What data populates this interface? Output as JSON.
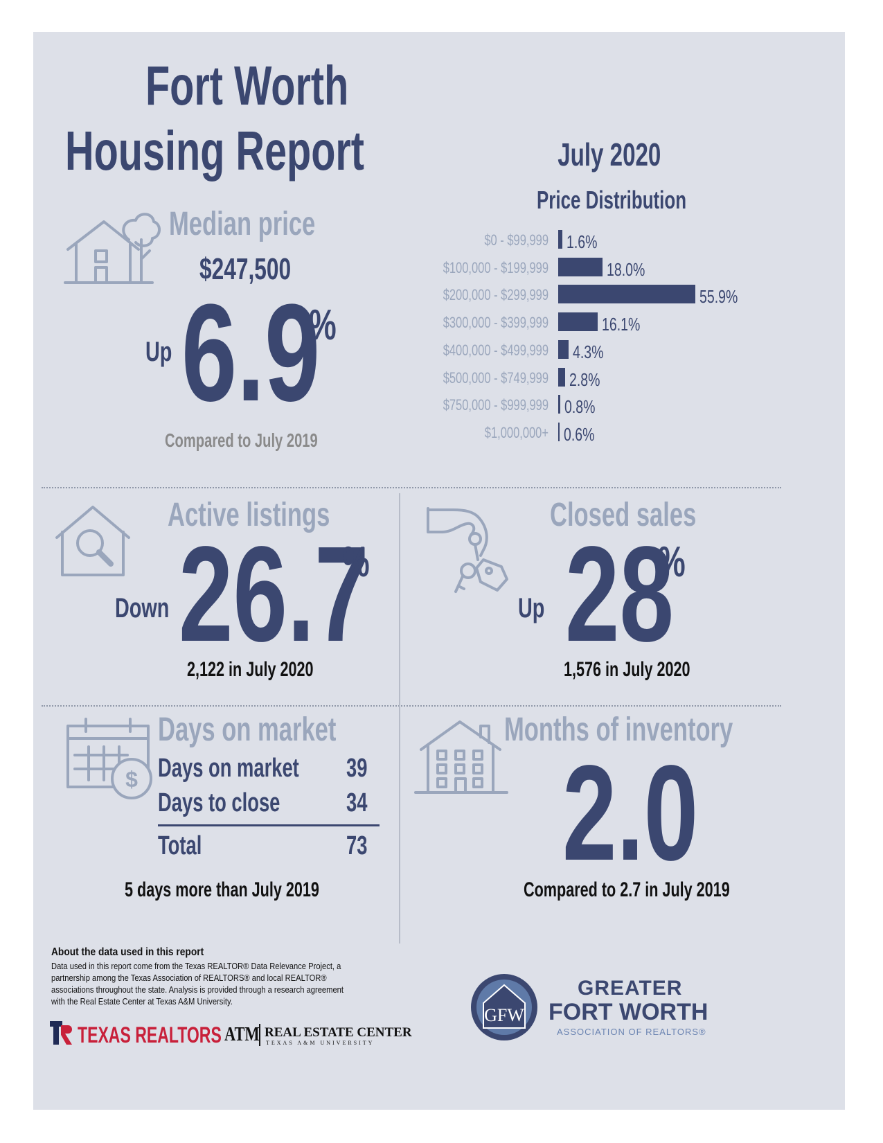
{
  "header": {
    "title_line1": "Fort Worth",
    "title_line2": "Housing Report",
    "period": "July 2020"
  },
  "median": {
    "heading": "Median price",
    "price": "$247,500",
    "direction": "Up",
    "change": "6.9",
    "percent_sign": "%",
    "comparison": "Compared to July 2019"
  },
  "price_distribution": {
    "heading": "Price Distribution",
    "chart_data": {
      "type": "bar",
      "title": "Price Distribution",
      "categories": [
        "$0 - $99,999",
        "$100,000 - $199,999",
        "$200,000 - $299,999",
        "$300,000 - $399,999",
        "$400,000 - $499,999",
        "$500,000 - $749,999",
        "$750,000 - $999,999",
        "$1,000,000+"
      ],
      "values": [
        1.6,
        18.0,
        55.9,
        16.1,
        4.3,
        2.8,
        0.8,
        0.6
      ],
      "value_labels": [
        "1.6%",
        "18.0%",
        "55.9%",
        "16.1%",
        "4.3%",
        "2.8%",
        "0.8%",
        "0.6%"
      ],
      "orientation": "horizontal",
      "color": "#3b4770"
    }
  },
  "active_listings": {
    "heading": "Active listings",
    "direction": "Down",
    "change": "26.7",
    "percent_sign": "%",
    "detail": "2,122 in July 2020"
  },
  "closed_sales": {
    "heading": "Closed sales",
    "direction": "Up",
    "change": "28",
    "percent_sign": "%",
    "detail": "1,576 in July 2020"
  },
  "days_on_market": {
    "heading": "Days on market",
    "rows": [
      {
        "label": "Days on market",
        "value": "39"
      },
      {
        "label": "Days to close",
        "value": "34"
      }
    ],
    "total_label": "Total",
    "total_value": "73",
    "comparison": "5 days more than July 2019"
  },
  "months_inventory": {
    "heading": "Months of inventory",
    "value": "2.0",
    "comparison": "Compared to 2.7 in July 2019"
  },
  "about": {
    "heading": "About the data used in this report",
    "lines": [
      "Data used in this report come from the Texas REALTOR® Data Relevance Project, a",
      "partnership among the Texas Association of REALTORS® and local REALTOR®",
      "associations throughout the state. Analysis is provided through a research agreement",
      "with the Real Estate Center at Texas A&M University."
    ]
  },
  "logos": {
    "texas_realtors": "TEXAS REALTORS",
    "rec_name": "REAL ESTATE CENTER",
    "rec_sub": "TEXAS A&M UNIVERSITY",
    "atm": "ATM",
    "gfw_line1": "GREATER",
    "gfw_line2": "FORT WORTH",
    "gfw_line3": "ASSOCIATION OF REALTORS®",
    "gfw_mark": "GFW"
  },
  "colors": {
    "navy": "#3b4770",
    "gray": "#9aa6bc",
    "panel": "#dde0e8",
    "red": "#c8203a"
  }
}
